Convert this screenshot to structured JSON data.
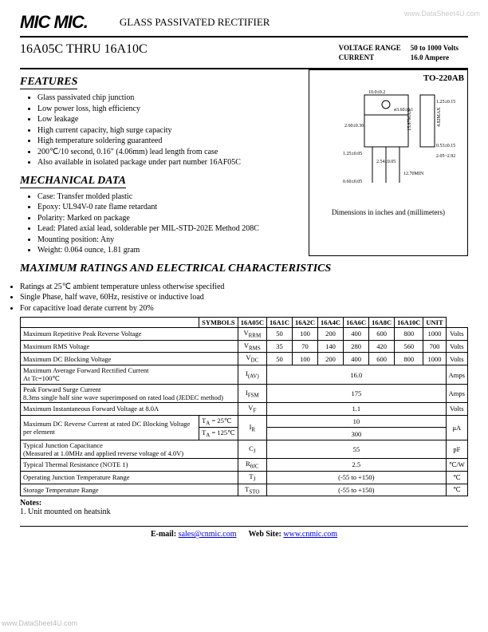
{
  "header": {
    "logo": "MIC MIC.",
    "subtitle": "GLASS PASSIVATED RECTIFIER",
    "watermark": "www.DataSheet4U.com"
  },
  "title": {
    "range": "16A05C THRU 16A10C",
    "vr_label": "VOLTAGE RANGE",
    "vr_value": "50 to 1000 Volts",
    "cur_label": "CURRENT",
    "cur_value": "16.0 Ampere"
  },
  "features": {
    "heading": "FEATURES",
    "items": [
      "Glass passivated chip junction",
      "Low power loss, high efficiency",
      "Low leakage",
      "High current capacity, high surge capacity",
      "High temperature soldering guaranteed",
      "200℃/10 second, 0.16\" (4.06mm) lead length from case",
      "Also available in isolated package under part number 16AF05C"
    ]
  },
  "mech": {
    "heading": "MECHANICAL DATA",
    "items": [
      "Case: Transfer molded plastic",
      "Epoxy: UL94V-0 rate flame retardant",
      "Polarity: Marked on package",
      "Lead: Plated axial lead, solderable per MIL-STD-202E Method 208C",
      "Mounting position: Any",
      "Weight:  0.064 ounce, 1.81 gram"
    ]
  },
  "package": {
    "label": "TO-220AB",
    "caption": "Dimensions in inches and (millimeters)"
  },
  "ratings": {
    "heading": "MAXIMUM RATINGS AND ELECTRICAL CHARACTERISTICS",
    "intro": [
      "Ratings at 25℃ ambient temperature unless otherwise specified",
      "Single Phase, half wave, 60Hz, resistive or inductive load",
      "For capacitive load derate current by 20%"
    ],
    "cols": [
      "SYMBOLS",
      "16A05C",
      "16A1C",
      "16A2C",
      "16A4C",
      "16A6C",
      "16A8C",
      "16A10C",
      "UNIT"
    ],
    "rows": [
      {
        "p": "Maximum Repetitive Peak Reverse Voltage",
        "s": "V<sub>RRM</sub>",
        "v": [
          "50",
          "100",
          "200",
          "400",
          "600",
          "800",
          "1000"
        ],
        "u": "Volts"
      },
      {
        "p": "Maximum RMS Voltage",
        "s": "V<sub>RMS</sub>",
        "v": [
          "35",
          "70",
          "140",
          "280",
          "420",
          "560",
          "700"
        ],
        "u": "Volts"
      },
      {
        "p": "Maximum DC Blocking Voltage",
        "s": "V<sub>DC</sub>",
        "v": [
          "50",
          "100",
          "200",
          "400",
          "600",
          "800",
          "1000"
        ],
        "u": "Volts"
      },
      {
        "p": "Maximum Average Forward Rectified Current<br>At Tc=100℃",
        "s": "I<sub>(AV)</sub>",
        "span": "16.0",
        "u": "Amps"
      },
      {
        "p": "Peak Forward Surge Current<br>8.3ms single half sine wave superimposed on rated load (JEDEC method)",
        "s": "I<sub>FSM</sub>",
        "span": "175",
        "u": "Amps"
      },
      {
        "p": "Maximum Instantaneous Forward Voltage at 8.0A",
        "s": "V<sub>F</sub>",
        "span": "1.1",
        "u": "Volts"
      },
      {
        "p": "Maximum DC Reverse Current at rated DC Blocking Voltage per element",
        "sub": [
          {
            "c": "T<sub>A</sub> = 25℃",
            "val": "10"
          },
          {
            "c": "T<sub>A</sub> = 125℃",
            "val": "300"
          }
        ],
        "s": "I<sub>R</sub>",
        "u": "μA"
      },
      {
        "p": "Typical Junction Capacitance<br>(Measured at 1.0MHz and applied reverse voltage of 4.0V)",
        "s": "C<sub>J</sub>",
        "span": "55",
        "u": "pF"
      },
      {
        "p": "Typical Thermal Resistance (NOTE 1)",
        "s": "R<sub>θJC</sub>",
        "span": "2.5",
        "u": "℃/W"
      },
      {
        "p": "Operating Junction Temperature Range",
        "s": "T<sub>J</sub>",
        "span": "(-55 to +150)",
        "u": "℃"
      },
      {
        "p": "Storage Temperature Range",
        "s": "T<sub>STO</sub>",
        "span": "(-55 to +150)",
        "u": "℃"
      }
    ]
  },
  "notes": {
    "h": "Notes:",
    "t": "1. Unit mounted on heatsink"
  },
  "footer": {
    "email_l": "E-mail: ",
    "email": "sales@cnmic.com",
    "web_l": "Web Site: ",
    "web": "www.cnmic.com"
  }
}
